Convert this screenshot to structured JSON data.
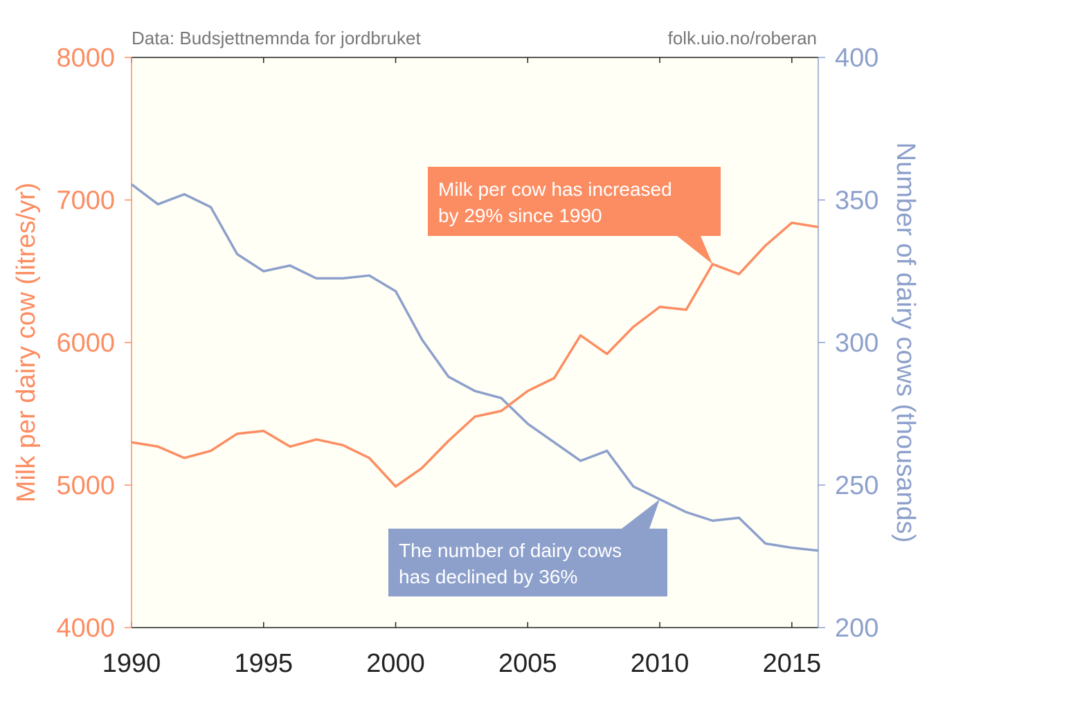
{
  "source_left": "Data: Budsjettnemnda for jordbruket",
  "source_right": "folk.uio.no/roberan",
  "colors": {
    "milk": "#fc8d62",
    "cows": "#8da0cb",
    "plot_bg": "#fffff5",
    "tick_text": "#222222",
    "source_text": "#777777"
  },
  "chart_data": {
    "type": "line",
    "xlabel": "",
    "xlim": [
      1990,
      2016
    ],
    "xticks": [
      1990,
      1995,
      2000,
      2005,
      2010,
      2015
    ],
    "grid": false,
    "y_left": {
      "label": "Milk per dairy cow (litres/yr)",
      "lim": [
        4000,
        8000
      ],
      "ticks": [
        4000,
        5000,
        6000,
        7000,
        8000
      ]
    },
    "y_right": {
      "label": "Number of dairy cows (thousands)",
      "lim": [
        200,
        400
      ],
      "ticks": [
        200,
        250,
        300,
        350,
        400
      ]
    },
    "x": [
      1990,
      1991,
      1992,
      1993,
      1994,
      1995,
      1996,
      1997,
      1998,
      1999,
      2000,
      2001,
      2002,
      2003,
      2004,
      2005,
      2006,
      2007,
      2008,
      2009,
      2010,
      2011,
      2012,
      2013,
      2014,
      2015,
      2016
    ],
    "series": [
      {
        "axis": "left",
        "values": [
          5300,
          5270,
          5190,
          5240,
          5360,
          5380,
          5270,
          5320,
          5280,
          5190,
          4990,
          5120,
          5310,
          5480,
          5520,
          5660,
          5750,
          6050,
          5920,
          6110,
          6250,
          6230,
          6550,
          6480,
          6680,
          6840,
          6810
        ]
      },
      {
        "axis": "right",
        "values": [
          355.5,
          348.5,
          352,
          347.5,
          331,
          325,
          327,
          322.5,
          322.5,
          323.5,
          318,
          301,
          288,
          283,
          280.5,
          271.5,
          265,
          258.5,
          262,
          249.5,
          245,
          240.5,
          237.5,
          238.5,
          229.5,
          228,
          227
        ]
      }
    ],
    "annotations": [
      {
        "series": 0,
        "x": 2012,
        "text_lines": [
          "Milk per cow has increased",
          "by 29% since 1990"
        ]
      },
      {
        "series": 1,
        "x": 2010,
        "text_lines": [
          "The number of dairy cows",
          "has declined by 36%"
        ]
      }
    ]
  }
}
